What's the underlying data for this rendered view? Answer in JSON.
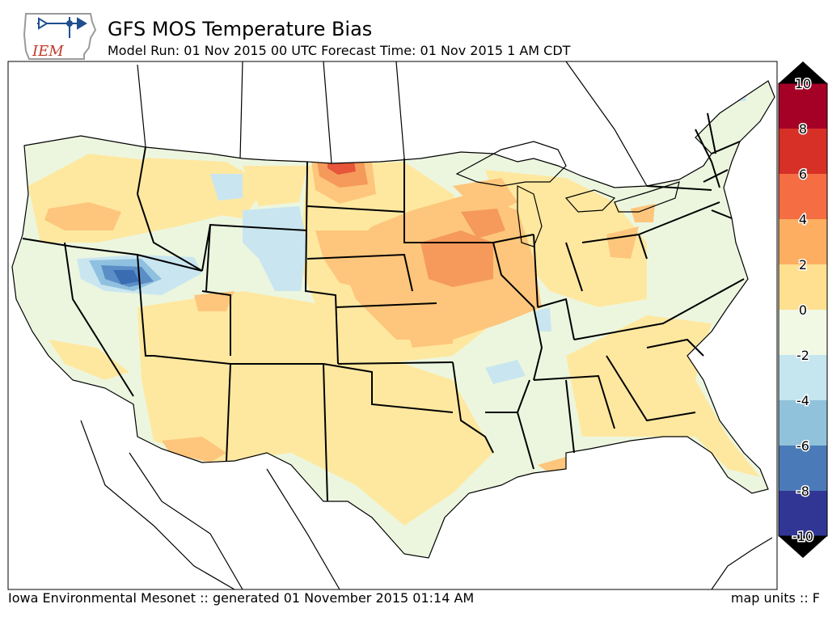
{
  "header": {
    "title": "GFS MOS Temperature Bias",
    "subtitle": "Model Run: 01 Nov 2015 00 UTC Forecast Time: 01 Nov 2015 1 AM CDT"
  },
  "logo": {
    "text": "IEM"
  },
  "footer": {
    "left": "Iowa Environmental Mesonet :: generated 01 November 2015 01:14 AM",
    "right": "map units :: F"
  },
  "legend": {
    "labels": [
      "10",
      "8",
      "6",
      "4",
      "2",
      "0",
      "-2",
      "-4",
      "-6",
      "-8",
      "-10"
    ],
    "colors": [
      "#a50026",
      "#d73027",
      "#f46d43",
      "#fdae61",
      "#fee090",
      "#f1f8e4",
      "#c5e5ef",
      "#91c2dc",
      "#4a7bb8",
      "#313695"
    ],
    "over_color": "#000000",
    "under_color": "#000000"
  },
  "palette": {
    "neutral": "#ecf6df",
    "warm_light": "#fee8a0",
    "warm": "#fdc67c",
    "warm_strong": "#f59a5a",
    "hot": "#e7553a",
    "cool_light": "#c9e6f0",
    "cool": "#8fc0df",
    "cool_strong": "#5b8ec6",
    "cold": "#3a6cb2"
  }
}
